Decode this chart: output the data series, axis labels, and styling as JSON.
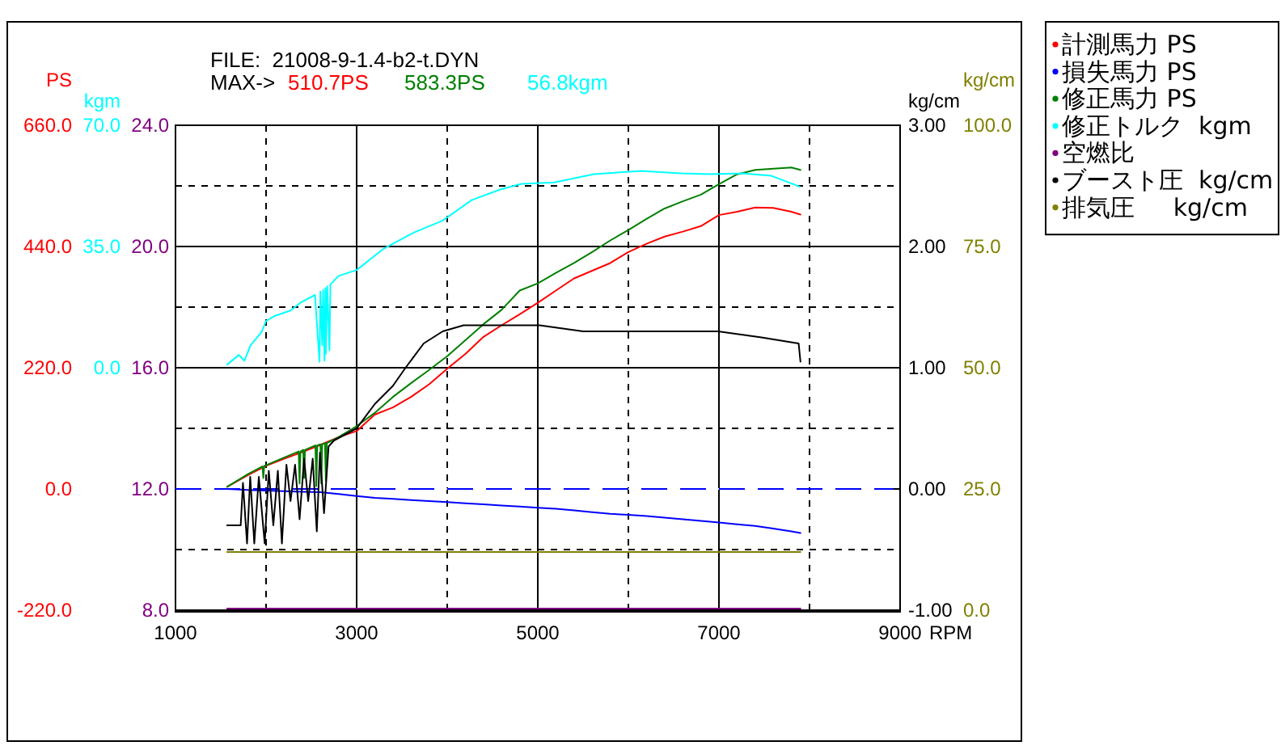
{
  "chart_data": [
    {
      "type": "line",
      "annotations": [
        "FILE:  21008-9-1.4-b2-t.DYN",
        "MAX->",
        "510.7PS",
        "583.3PS",
        "56.8kgm"
      ],
      "xlabel": "RPM",
      "ylabel": "PS",
      "y2label": "kgm",
      "xlim": [
        1000,
        9000
      ],
      "xticks": [
        1000,
        {
          "value": 2000,
          "label": null
        },
        3000,
        {
          "value": 4000,
          "label": null
        },
        5000,
        {
          "value": 6000,
          "label": null
        },
        7000,
        {
          "value": 8000,
          "label": null
        },
        9000
      ],
      "ylim": [
        -220,
        660
      ],
      "yticks": [
        {
          "value": -220,
          "label": "-220.0"
        },
        {
          "value": -110,
          "label": null
        },
        {
          "value": 0,
          "label": "0.0"
        },
        {
          "value": 110,
          "label": null
        },
        {
          "value": 220,
          "label": "220.0"
        },
        {
          "value": 330,
          "label": null
        },
        {
          "value": 440,
          "label": "440.0"
        },
        {
          "value": 550,
          "label": null
        },
        {
          "value": 660,
          "label": "660.0"
        }
      ],
      "y2lim": [
        -70,
        70
      ],
      "y2ticks": [
        {
          "value": 0,
          "label": "0.0"
        },
        {
          "value": 35,
          "label": "35.0"
        },
        {
          "value": 70,
          "label": "70.0"
        }
      ],
      "y3lim": [
        8,
        24
      ],
      "y3ticks": [
        {
          "value": 8,
          "label": "8.0"
        },
        {
          "value": 12,
          "label": "12.0"
        },
        {
          "value": 16,
          "label": "16.0"
        },
        {
          "value": 20,
          "label": "20.0"
        },
        {
          "value": 24,
          "label": "24.0"
        }
      ],
      "grid": true,
      "legend": "right",
      "ref_lines": [
        {
          "axis": "y",
          "value": 0,
          "color": "#0000ff",
          "line_style": "dashed"
        }
      ],
      "x": [
        1570,
        1800,
        2000,
        2200,
        2400,
        2600,
        2800,
        3000,
        3200,
        3400,
        3600,
        3800,
        4000,
        4200,
        4400,
        4600,
        4800,
        5000,
        5200,
        5400,
        5600,
        5800,
        6000,
        6200,
        6400,
        6600,
        6800,
        7000,
        7200,
        7400,
        7600,
        7800,
        7900
      ],
      "series": [
        {
          "name": "計測馬力 PS",
          "color": "#ff0000",
          "values": [
            4,
            25,
            42,
            55,
            67,
            80,
            94,
            105,
            135,
            148,
            167,
            190,
            218,
            245,
            276,
            297,
            317,
            338,
            360,
            382,
            396,
            410,
            430,
            445,
            458,
            467,
            477,
            497,
            503,
            510.7,
            510,
            503,
            498
          ]
        },
        {
          "name": "損失馬力 PS",
          "color": "#0000ff",
          "values": [
            0,
            -2,
            -3,
            -4,
            -5,
            -6,
            -9,
            -13,
            -16,
            -18,
            -20,
            -22,
            -24,
            -26,
            -28,
            -30,
            -32,
            -34,
            -36,
            -39,
            -42,
            -45,
            -47,
            -49,
            -52,
            -55,
            -58,
            -61,
            -64,
            -67,
            -72,
            -77,
            -80
          ]
        },
        {
          "name": "修正馬力 PS",
          "color": "#008000",
          "x": [
            1570,
            1800,
            1960,
            1970,
            1980,
            2000,
            2200,
            2360,
            2370,
            2380,
            2400,
            2410,
            2420,
            2430,
            2545,
            2555,
            2565,
            2600,
            2610,
            2620,
            2650,
            2660,
            2670,
            2800,
            3000,
            3200,
            3400,
            3600,
            3800,
            4000,
            4200,
            4400,
            4600,
            4800,
            5000,
            5200,
            5400,
            5600,
            5800,
            6000,
            6200,
            6400,
            6600,
            6800,
            7000,
            7200,
            7400,
            7600,
            7800,
            7900
          ],
          "values": [
            4,
            27,
            41,
            20,
            42,
            43,
            57,
            68,
            10,
            68,
            70,
            71,
            20,
            71,
            79,
            5,
            79,
            81,
            10,
            81,
            83,
            15,
            83,
            94,
            114,
            138,
            167,
            192,
            216,
            241,
            270,
            299,
            325,
            360,
            373,
            392,
            410,
            430,
            451,
            470,
            490,
            509,
            522,
            534,
            553,
            571,
            579,
            581,
            583.3,
            579
          ]
        },
        {
          "name": "修正トルク  kgm",
          "color": "#00ffff",
          "axis": "y2",
          "x": [
            1570,
            1700,
            1760,
            1830,
            1950,
            2000,
            2100,
            2270,
            2380,
            2540,
            2590,
            2600,
            2620,
            2630,
            2645,
            2655,
            2660,
            2675,
            2700,
            2710,
            2800,
            3000,
            3300,
            3630,
            3950,
            4270,
            4590,
            4820,
            5180,
            5620,
            6140,
            6580,
            6900,
            7260,
            7580,
            7890
          ],
          "values": [
            0.9,
            3.7,
            2,
            6.5,
            10.3,
            13.5,
            15,
            16.5,
            18.8,
            21,
            1.7,
            22,
            6.5,
            22.5,
            2,
            23,
            4,
            23.5,
            5,
            24,
            26.5,
            28.2,
            34.4,
            39,
            42.5,
            48.4,
            51.5,
            53.1,
            53.5,
            55.9,
            56.8,
            56.1,
            55.9,
            56.1,
            55.4,
            52.3
          ]
        },
        {
          "name": "空燃比",
          "color": "#800080",
          "axis": "y3",
          "values": [
            8.05,
            8.05,
            8.05,
            8.05,
            8.05,
            8.05,
            8.05,
            8.05,
            8.05,
            8.05,
            8.05,
            8.05,
            8.05,
            8.05,
            8.05,
            8.05,
            8.05,
            8.05,
            8.05,
            8.05,
            8.05,
            8.05,
            8.05,
            8.05,
            8.05,
            8.05,
            8.05,
            8.05,
            8.05,
            8.05,
            8.05,
            8.05,
            8.05
          ]
        }
      ]
    },
    {
      "type": "line",
      "ylabel": "kg/cm",
      "y2label": "kg/cm",
      "tick_labels": "y",
      "legend": "right",
      "xlim": [
        1000,
        9000
      ],
      "ylim": [
        -1,
        3
      ],
      "yticks": [
        {
          "value": -1,
          "label": "-1.00"
        },
        {
          "value": 0,
          "label": "0.00"
        },
        {
          "value": 1,
          "label": "1.00"
        },
        {
          "value": 2,
          "label": "2.00"
        },
        {
          "value": 3,
          "label": "3.00"
        }
      ],
      "y2lim": [
        0,
        100
      ],
      "y2ticks": [
        {
          "value": 0,
          "label": "0.0"
        },
        {
          "value": 25,
          "label": "25.0"
        },
        {
          "value": 50,
          "label": "50.0"
        },
        {
          "value": 75,
          "label": "75.0"
        },
        {
          "value": 100,
          "label": "100.0"
        }
      ],
      "series": [
        {
          "name": "ブースト圧  kg/cm",
          "color": "#000000",
          "x": [
            1570,
            1665,
            1720,
            1745,
            1790,
            1825,
            1870,
            1920,
            1985,
            2030,
            2080,
            2130,
            2175,
            2225,
            2270,
            2320,
            2370,
            2420,
            2465,
            2515,
            2560,
            2595,
            2640,
            2690,
            2750,
            3000,
            3200,
            3400,
            3540,
            3740,
            3950,
            4180,
            4430,
            4700,
            5020,
            5500,
            5980,
            6990,
            7470,
            7880,
            7900
          ],
          "values": [
            -0.3,
            -0.3,
            -0.3,
            0.05,
            -0.45,
            0.1,
            -0.45,
            0.1,
            -0.45,
            0.15,
            -0.3,
            0.15,
            -0.45,
            0.2,
            -0.1,
            0.2,
            -0.25,
            0.25,
            -0.1,
            0.25,
            -0.35,
            0.3,
            -0.2,
            0.35,
            0.4,
            0.5,
            0.7,
            0.85,
            1,
            1.2,
            1.3,
            1.35,
            1.35,
            1.35,
            1.35,
            1.3,
            1.3,
            1.3,
            1.25,
            1.2,
            1.05
          ]
        },
        {
          "name": "排気圧     kg/cm",
          "color": "#808000",
          "axis": "y2",
          "x": [
            1570,
            2000,
            2500,
            3000,
            3500,
            4000,
            4500,
            5000,
            5500,
            6000,
            6500,
            7000,
            7500,
            7900
          ],
          "values": [
            12,
            12,
            12,
            12,
            12,
            12,
            12,
            12,
            12,
            12,
            12,
            12,
            12,
            12
          ]
        }
      ]
    }
  ]
}
